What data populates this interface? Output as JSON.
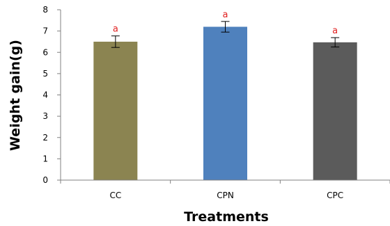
{
  "chart_data": {
    "type": "bar",
    "title": "",
    "xlabel": "Treatments",
    "ylabel": "Weight gain(g)",
    "ylim": [
      0,
      8
    ],
    "yticks": [
      "0",
      "1",
      "2",
      "3",
      "4",
      "5",
      "6",
      "7",
      "8"
    ],
    "categories": [
      "CC",
      "CPN",
      "CPC"
    ],
    "values": [
      6.5,
      7.2,
      6.47
    ],
    "errors": [
      0.27,
      0.25,
      0.22
    ],
    "significance": [
      "a",
      "a",
      "a"
    ],
    "colors": [
      "#8B8451",
      "#4F81BD",
      "#5B5B5B"
    ],
    "significance_color": "#E02020",
    "grid": false,
    "legend": "none"
  }
}
